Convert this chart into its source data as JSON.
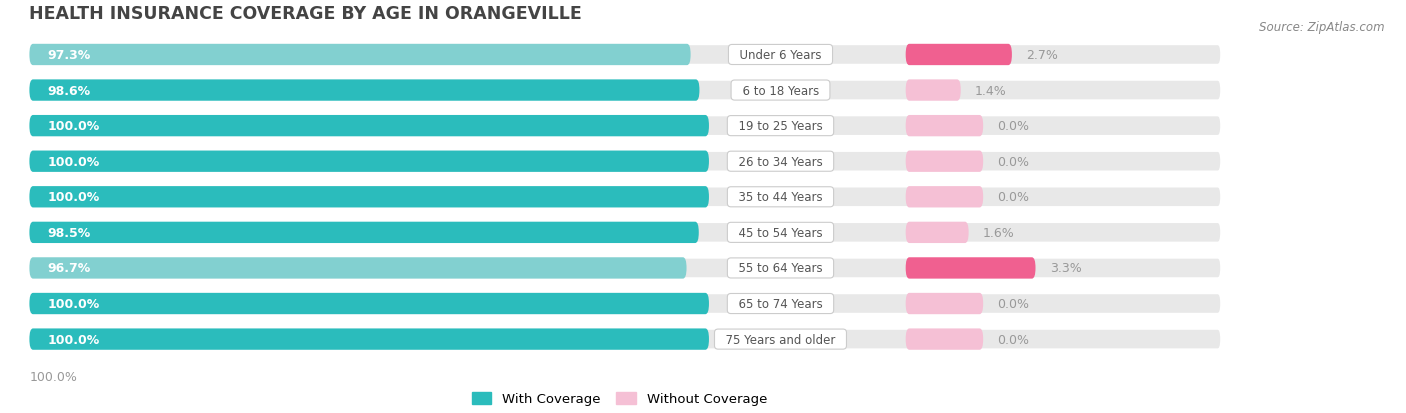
{
  "title": "HEALTH INSURANCE COVERAGE BY AGE IN ORANGEVILLE",
  "source": "Source: ZipAtlas.com",
  "categories": [
    "Under 6 Years",
    "6 to 18 Years",
    "19 to 25 Years",
    "26 to 34 Years",
    "35 to 44 Years",
    "45 to 54 Years",
    "55 to 64 Years",
    "65 to 74 Years",
    "75 Years and older"
  ],
  "with_coverage": [
    97.3,
    98.6,
    100.0,
    100.0,
    100.0,
    98.5,
    96.7,
    100.0,
    100.0
  ],
  "without_coverage": [
    2.7,
    1.4,
    0.0,
    0.0,
    0.0,
    1.6,
    3.3,
    0.0,
    0.0
  ],
  "teal_dark": "#2bbcbc",
  "teal_light": "#82d0d0",
  "pink_dark": "#f06090",
  "pink_light": "#f5c0d5",
  "bar_bg_color": "#e8e8e8",
  "bg_fig": "#ffffff",
  "title_color": "#444444",
  "cat_label_color": "#555555",
  "val_left_color": "#ffffff",
  "val_right_color": "#999999",
  "source_color": "#888888",
  "legend_with_label": "With Coverage",
  "legend_without_label": "Without Coverage"
}
